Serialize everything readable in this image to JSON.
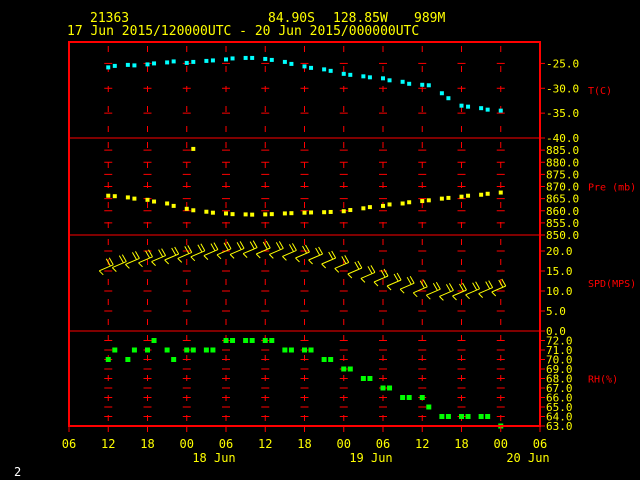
{
  "header": {
    "station": "21363",
    "lat": "84.90S",
    "lon": "128.85W",
    "elev": "989M",
    "range": "17 Jun 2015/120000UTC - 20 Jun 2015/000000UTC"
  },
  "footer": {
    "page": "2"
  },
  "colors": {
    "frame": "#ff0000",
    "grid": "#ff0000",
    "temp": "#00ffff",
    "pressure": "#ffff00",
    "wind": "#ffff00",
    "rh": "#00ff00",
    "axis_text": "#ffff00",
    "label_text": "#ff0000"
  },
  "chart_data": {
    "type": "scatter",
    "x_ticks": [
      "06",
      "12",
      "18",
      "00",
      "06",
      "12",
      "18",
      "00",
      "06",
      "12",
      "18",
      "00",
      "06"
    ],
    "x_tick_hours": [
      6,
      12,
      18,
      24,
      30,
      36,
      42,
      48,
      54,
      60,
      66,
      72,
      78
    ],
    "day_labels": [
      {
        "label": "18 Jun",
        "hour": 30
      },
      {
        "label": "19 Jun",
        "hour": 54
      },
      {
        "label": "20 Jun",
        "hour": 78
      }
    ],
    "x_range": [
      6,
      78
    ],
    "panels": [
      {
        "name": "temperature",
        "label": "T(C)",
        "mark": "dot",
        "ticks": [
          "-25.0",
          "-30.0",
          "-35.0",
          "-40.0"
        ],
        "tick_values": [
          -25,
          -30,
          -35,
          -40
        ],
        "ylim": [
          -40,
          -21.5
        ],
        "x": [
          12,
          13,
          15,
          16,
          18,
          19,
          21,
          22,
          24,
          25,
          27,
          28,
          30,
          31,
          33,
          34,
          36,
          37,
          39,
          40,
          42,
          43,
          45,
          46,
          48,
          49,
          51,
          52,
          54,
          55,
          57,
          58,
          60,
          61,
          63,
          64,
          66,
          67,
          69,
          70,
          72
        ],
        "y": [
          -25.8,
          -25.5,
          -25.3,
          -25.4,
          -25.2,
          -25.0,
          -24.8,
          -24.6,
          -24.9,
          -24.7,
          -24.5,
          -24.4,
          -24.2,
          -24.0,
          -23.9,
          -23.9,
          -24.1,
          -24.3,
          -24.7,
          -25.1,
          -25.6,
          -25.9,
          -26.2,
          -26.5,
          -27.1,
          -27.3,
          -27.6,
          -27.8,
          -28.0,
          -28.4,
          -28.7,
          -29.1,
          -29.3,
          -29.4,
          -31.0,
          -32.0,
          -33.5,
          -33.7,
          -34.0,
          -34.3,
          -34.5
        ]
      },
      {
        "name": "pressure",
        "label": "Pre (mb)",
        "mark": "dot",
        "ticks": [
          "885.0",
          "880.0",
          "875.0",
          "870.0",
          "865.0",
          "860.0",
          "855.0",
          "850.0"
        ],
        "tick_values": [
          885,
          880,
          875,
          870,
          865,
          860,
          855,
          850
        ],
        "ylim": [
          850,
          890
        ],
        "x": [
          12,
          13,
          15,
          16,
          18,
          19,
          21,
          22,
          24,
          25,
          27,
          28,
          30,
          31,
          33,
          34,
          36,
          37,
          39,
          40,
          42,
          43,
          45,
          46,
          48,
          49,
          51,
          52,
          54,
          55,
          57,
          58,
          60,
          61,
          63,
          64,
          66,
          67,
          69,
          70,
          72
        ],
        "y": [
          866.2,
          866.0,
          865.5,
          865.0,
          864.5,
          863.8,
          863.0,
          862.0,
          860.8,
          860.2,
          859.6,
          859.2,
          858.9,
          858.6,
          858.5,
          858.4,
          858.5,
          858.6,
          858.9,
          859.0,
          859.2,
          859.3,
          859.4,
          859.5,
          859.8,
          860.3,
          861.0,
          861.5,
          862.0,
          862.6,
          863.0,
          863.5,
          864.0,
          864.3,
          865.0,
          865.3,
          865.8,
          866.2,
          866.6,
          867.0,
          867.5
        ],
        "outlier": {
          "x": 25,
          "y": 885.5
        }
      },
      {
        "name": "wind",
        "label": "SPD(MPS)",
        "mark": "barb",
        "ticks": [
          "20.0",
          "15.0",
          "10.0",
          "5.0",
          "0.0"
        ],
        "tick_values": [
          20,
          15,
          10,
          5,
          0
        ],
        "ylim": [
          0,
          24
        ],
        "x": [
          12,
          14,
          16,
          18,
          20,
          22,
          24,
          26,
          28,
          30,
          32,
          34,
          36,
          38,
          40,
          42,
          44,
          46,
          48,
          50,
          52,
          54,
          56,
          58,
          60,
          62,
          64,
          66,
          68,
          70,
          72
        ],
        "y": [
          15.8,
          16.6,
          17.4,
          17.8,
          18.1,
          18.5,
          18.9,
          19.3,
          19.6,
          19.8,
          19.9,
          20.1,
          20.0,
          19.9,
          19.4,
          19.0,
          18.5,
          17.5,
          16.4,
          15.0,
          13.9,
          13.0,
          12.0,
          11.2,
          10.3,
          9.7,
          9.4,
          9.5,
          9.8,
          10.1,
          10.5
        ]
      },
      {
        "name": "rh",
        "label": "RH(%)",
        "mark": "square",
        "ticks": [
          "72.0",
          "71.0",
          "70.0",
          "69.0",
          "68.0",
          "67.0",
          "66.0",
          "65.0",
          "64.0",
          "63.0"
        ],
        "tick_values": [
          72,
          71,
          70,
          69,
          68,
          67,
          66,
          65,
          64,
          63
        ],
        "ylim": [
          63,
          73
        ],
        "x": [
          12,
          13,
          15,
          16,
          18,
          19,
          21,
          22,
          24,
          25,
          27,
          28,
          30,
          31,
          33,
          34,
          36,
          37,
          39,
          40,
          42,
          43,
          45,
          46,
          48,
          49,
          51,
          52,
          54,
          55,
          57,
          58,
          60,
          61,
          63,
          64,
          66,
          67,
          69,
          70,
          72
        ],
        "y": [
          70,
          71,
          70,
          71,
          71,
          72,
          71,
          70,
          71,
          71,
          71,
          71,
          72,
          72,
          72,
          72,
          72,
          72,
          71,
          71,
          71,
          71,
          70,
          70,
          69,
          69,
          68,
          68,
          67,
          67,
          66,
          66,
          66,
          65,
          64,
          64,
          64,
          64,
          64,
          64,
          63
        ]
      }
    ]
  }
}
